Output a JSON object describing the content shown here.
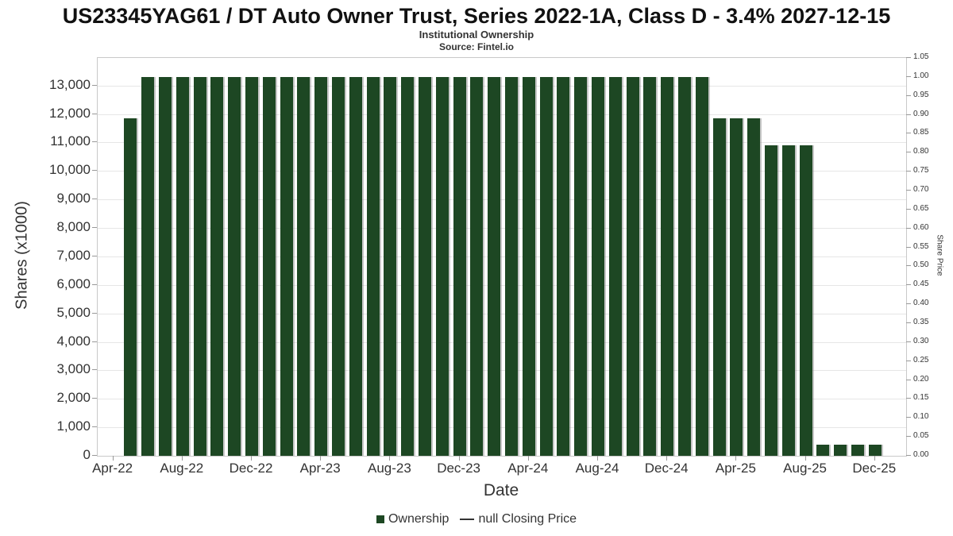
{
  "chart_data": {
    "type": "bar",
    "title": "US23345YAG61 / DT Auto Owner Trust, Series 2022-1A, Class D - 3.4% 2027-12-15",
    "subtitle": "Institutional Ownership",
    "source": "Source: Fintel.io",
    "xlabel": "Date",
    "ylabel_left": "Shares (x1000)",
    "ylabel_right": "Share Price",
    "legend": [
      "Ownership",
      "null Closing Price"
    ],
    "x_tick_labels": [
      "Apr-22",
      "Aug-22",
      "Dec-22",
      "Apr-23",
      "Aug-23",
      "Dec-23",
      "Apr-24",
      "Aug-24",
      "Dec-24",
      "Apr-25",
      "Aug-25",
      "Dec-25"
    ],
    "x_tick_month_offsets": [
      0,
      4,
      8,
      12,
      16,
      20,
      24,
      28,
      32,
      36,
      40,
      44
    ],
    "x": [
      "May-22",
      "Jun-22",
      "Jul-22",
      "Aug-22",
      "Sep-22",
      "Oct-22",
      "Nov-22",
      "Dec-22",
      "Jan-23",
      "Feb-23",
      "Mar-23",
      "Apr-23",
      "May-23",
      "Jun-23",
      "Jul-23",
      "Aug-23",
      "Sep-23",
      "Oct-23",
      "Nov-23",
      "Dec-23",
      "Jan-24",
      "Feb-24",
      "Mar-24",
      "Apr-24",
      "May-24",
      "Jun-24",
      "Jul-24",
      "Aug-24",
      "Sep-24",
      "Oct-24",
      "Nov-24",
      "Dec-24",
      "Jan-25",
      "Feb-25",
      "Mar-25",
      "Apr-25",
      "May-25",
      "Jun-25",
      "Jul-25",
      "Aug-25",
      "Sep-25",
      "Oct-25",
      "Nov-25",
      "Dec-25"
    ],
    "values": [
      11850,
      13300,
      13300,
      13300,
      13300,
      13300,
      13300,
      13300,
      13300,
      13300,
      13300,
      13300,
      13300,
      13300,
      13300,
      13300,
      13300,
      13300,
      13300,
      13300,
      13300,
      13300,
      13300,
      13300,
      13300,
      13300,
      13300,
      13300,
      13300,
      13300,
      13300,
      13300,
      13300,
      13300,
      11850,
      11850,
      11850,
      10900,
      10900,
      10900,
      400,
      400,
      400,
      400
    ],
    "ylim_left": [
      0,
      13965
    ],
    "ylim_right": [
      0,
      1.05
    ],
    "y_tick_step_left": 1000,
    "y_tick_max_left": 13000,
    "y_tick_step_right": 0.05,
    "bar_color": "#1d4723",
    "grid_color": "#e6e6e6",
    "legend_position": "bottom-center",
    "grid": "horizontal-only"
  }
}
